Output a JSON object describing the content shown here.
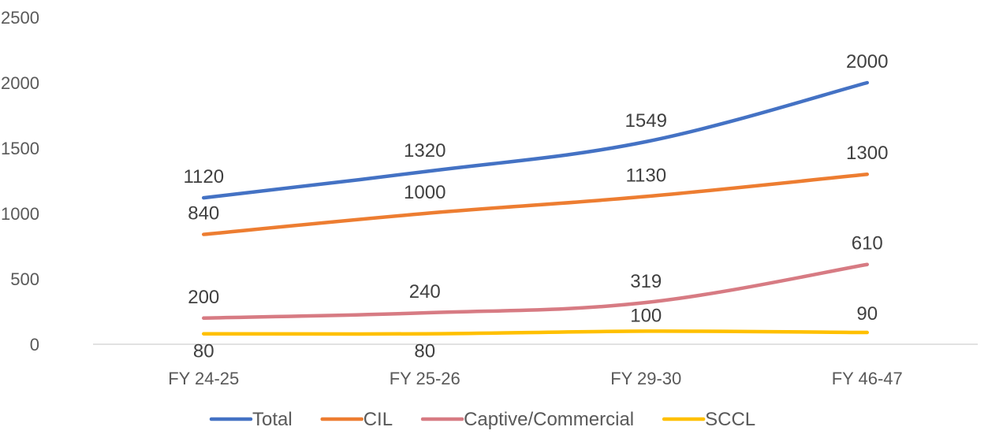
{
  "chart_data": {
    "type": "line",
    "title": "",
    "xlabel": "",
    "ylabel": "",
    "categories": [
      "FY 24-25",
      "FY 25-26",
      "FY 29-30",
      "FY 46-47"
    ],
    "ylim": [
      0,
      2500
    ],
    "yticks": [
      0,
      500,
      1000,
      1500,
      2000,
      2500
    ],
    "grid": false,
    "legend_position": "bottom",
    "data_labels": true,
    "series": [
      {
        "name": "Total",
        "color": "#4472C4",
        "values": [
          1120,
          1320,
          1549,
          2000
        ]
      },
      {
        "name": "CIL",
        "color": "#ED7D31",
        "values": [
          840,
          1000,
          1130,
          1300
        ]
      },
      {
        "name": "Captive/Commercial",
        "color": "#D77B83",
        "values": [
          200,
          240,
          319,
          610
        ]
      },
      {
        "name": "SCCL",
        "color": "#FFC000",
        "values": [
          80,
          80,
          100,
          90
        ]
      }
    ]
  }
}
